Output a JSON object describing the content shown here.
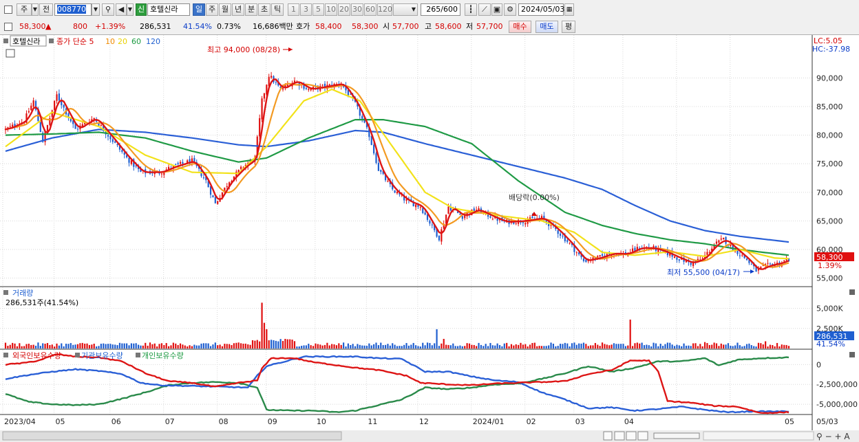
{
  "toolbar": {
    "period_left": "주",
    "prev_label": "전",
    "code": "008770",
    "credit_badge": "신",
    "stock_name": "호텔신라",
    "periods": [
      "일",
      "주",
      "월",
      "년",
      "분",
      "초",
      "틱"
    ],
    "numbers": [
      "1",
      "3",
      "5",
      "10",
      "20",
      "30",
      "60",
      "120"
    ],
    "count": "265",
    "count_total": "/600",
    "date": "2024/05/03"
  },
  "quote": {
    "price": "58,300",
    "change": "800",
    "change_pct": "+1.39%",
    "volume": "286,531",
    "volume_ratio": "41.54%",
    "turnover_pct": "0.73%",
    "amount": "16,686백만",
    "hoga_label": "호가",
    "ask": "58,400",
    "bid": "58,300",
    "open_label": "시",
    "open": "57,700",
    "high_label": "고",
    "high": "58,600",
    "low_label": "저",
    "low": "57,700",
    "buy_label": "매수",
    "sell_label": "매도",
    "flat_label": "평"
  },
  "panels": {
    "price_title": "호텔신라",
    "ma_legend": [
      "종가 단순 5",
      "10",
      "20",
      "60",
      "120"
    ],
    "lc": "LC:5.05",
    "hc": "HC:-37.98",
    "max_label": "최고 94,000 (08/28)",
    "min_label": "최저 55,500 (04/17)",
    "dividend_label": "배당락(0.00%)",
    "price_box": "58,300",
    "price_box_pct": "1.39%",
    "volume_title": "거래량",
    "volume_value": "286,531주(41.54%)",
    "volume_box": "286,531",
    "volume_box_pct": "41.54%",
    "holding_titles": [
      "외국인보유수량",
      "기관보유수량",
      "개인보유수량"
    ]
  },
  "chart_data": {
    "type": "candlestick",
    "x_labels": [
      "2023/04",
      "05",
      "06",
      "07",
      "08",
      "09",
      "10",
      "11",
      "12",
      "2024/01",
      "02",
      "03",
      "04",
      "05",
      "05/03"
    ],
    "price_axis": [
      "90,000",
      "85,000",
      "80,000",
      "75,000",
      "70,000",
      "65,000",
      "60,000",
      "55,000"
    ],
    "price_ylim": [
      53500,
      97500
    ],
    "close_anchors": [
      [
        0,
        81000
      ],
      [
        8,
        82500
      ],
      [
        12,
        86000
      ],
      [
        16,
        79000
      ],
      [
        22,
        87000
      ],
      [
        30,
        81000
      ],
      [
        38,
        83000
      ],
      [
        46,
        79000
      ],
      [
        52,
        76000
      ],
      [
        58,
        73500
      ],
      [
        66,
        73500
      ],
      [
        72,
        74500
      ],
      [
        80,
        75500
      ],
      [
        86,
        72000
      ],
      [
        90,
        68000
      ],
      [
        96,
        72000
      ],
      [
        102,
        74500
      ],
      [
        107,
        76000
      ],
      [
        110,
        86000
      ],
      [
        113,
        90500
      ],
      [
        118,
        88000
      ],
      [
        124,
        89500
      ],
      [
        130,
        88000
      ],
      [
        137,
        88500
      ],
      [
        144,
        89000
      ],
      [
        150,
        85500
      ],
      [
        156,
        80000
      ],
      [
        160,
        74000
      ],
      [
        166,
        70500
      ],
      [
        172,
        68500
      ],
      [
        178,
        67500
      ],
      [
        183,
        64000
      ],
      [
        186,
        62000
      ],
      [
        190,
        67500
      ],
      [
        196,
        65800
      ],
      [
        202,
        67000
      ],
      [
        207,
        66000
      ],
      [
        214,
        64800
      ],
      [
        222,
        65000
      ],
      [
        230,
        65500
      ],
      [
        236,
        63500
      ],
      [
        242,
        61000
      ],
      [
        248,
        58000
      ],
      [
        254,
        58500
      ],
      [
        260,
        59300
      ],
      [
        266,
        59200
      ],
      [
        272,
        60300
      ],
      [
        278,
        60200
      ],
      [
        283,
        59500
      ],
      [
        289,
        58400
      ],
      [
        294,
        57600
      ],
      [
        299,
        58400
      ],
      [
        304,
        60800
      ],
      [
        308,
        61800
      ],
      [
        312,
        60300
      ],
      [
        318,
        58200
      ],
      [
        322,
        56300
      ],
      [
        327,
        57200
      ],
      [
        332,
        57600
      ],
      [
        336,
        58300
      ]
    ],
    "ma_anchors": {
      "ma20": [
        [
          0,
          78000
        ],
        [
          20,
          84000
        ],
        [
          40,
          81500
        ],
        [
          60,
          76500
        ],
        [
          80,
          73500
        ],
        [
          100,
          73300
        ],
        [
          112,
          78000
        ],
        [
          128,
          86000
        ],
        [
          140,
          88000
        ],
        [
          152,
          86000
        ],
        [
          166,
          78000
        ],
        [
          180,
          70000
        ],
        [
          192,
          67200
        ],
        [
          210,
          66000
        ],
        [
          230,
          65000
        ],
        [
          244,
          63000
        ],
        [
          256,
          59500
        ],
        [
          270,
          59000
        ],
        [
          285,
          59600
        ],
        [
          300,
          58800
        ],
        [
          315,
          60000
        ],
        [
          330,
          58500
        ],
        [
          336,
          58400
        ]
      ],
      "ma60": [
        [
          0,
          80000
        ],
        [
          20,
          80200
        ],
        [
          40,
          80500
        ],
        [
          60,
          79500
        ],
        [
          80,
          77200
        ],
        [
          100,
          75300
        ],
        [
          112,
          76000
        ],
        [
          130,
          79500
        ],
        [
          150,
          82700
        ],
        [
          162,
          82700
        ],
        [
          180,
          81500
        ],
        [
          200,
          78500
        ],
        [
          220,
          72000
        ],
        [
          240,
          66500
        ],
        [
          256,
          64200
        ],
        [
          270,
          62800
        ],
        [
          285,
          61700
        ],
        [
          300,
          61000
        ],
        [
          315,
          60000
        ],
        [
          325,
          59500
        ],
        [
          336,
          59000
        ]
      ],
      "ma120": [
        [
          0,
          77200
        ],
        [
          20,
          79500
        ],
        [
          40,
          81000
        ],
        [
          60,
          80500
        ],
        [
          80,
          79500
        ],
        [
          100,
          78300
        ],
        [
          112,
          78000
        ],
        [
          130,
          79000
        ],
        [
          150,
          80800
        ],
        [
          162,
          80500
        ],
        [
          180,
          78500
        ],
        [
          200,
          76500
        ],
        [
          220,
          74500
        ],
        [
          240,
          72500
        ],
        [
          256,
          70500
        ],
        [
          270,
          67700
        ],
        [
          285,
          65000
        ],
        [
          300,
          63300
        ],
        [
          315,
          62300
        ],
        [
          336,
          61300
        ]
      ]
    },
    "volume_axis": [
      "5,000K",
      "2,500K"
    ],
    "volume_max": 6500000,
    "volume_spikes": [
      [
        110,
        5700000
      ],
      [
        111,
        3200000
      ],
      [
        112,
        2400000
      ],
      [
        185,
        2400000
      ],
      [
        188,
        1200000
      ],
      [
        268,
        3600000
      ],
      [
        300,
        800000
      ],
      [
        326,
        900000
      ]
    ],
    "holding_axis": [
      "0",
      "-2,500,000",
      "-5,000,000"
    ],
    "holding_ylim": [
      -6200000,
      1500000
    ],
    "holdings": {
      "foreign": [
        [
          0,
          0
        ],
        [
          8,
          200000
        ],
        [
          14,
          500000
        ],
        [
          22,
          1300000
        ],
        [
          30,
          1000000
        ],
        [
          40,
          900000
        ],
        [
          50,
          400000
        ],
        [
          60,
          -1100000
        ],
        [
          70,
          -2100000
        ],
        [
          80,
          -2300000
        ],
        [
          90,
          -2800000
        ],
        [
          100,
          -2300000
        ],
        [
          108,
          -2000000
        ],
        [
          110,
          -500000
        ],
        [
          114,
          800000
        ],
        [
          124,
          800000
        ],
        [
          132,
          300000
        ],
        [
          140,
          0
        ],
        [
          150,
          -400000
        ],
        [
          160,
          -700000
        ],
        [
          172,
          -1400000
        ],
        [
          178,
          -2300000
        ],
        [
          190,
          -2500000
        ],
        [
          200,
          -2600000
        ],
        [
          210,
          -2400000
        ],
        [
          220,
          -2300000
        ],
        [
          230,
          -2200000
        ],
        [
          240,
          -2100000
        ],
        [
          250,
          -1200000
        ],
        [
          260,
          -700000
        ],
        [
          268,
          500000
        ],
        [
          276,
          500000
        ],
        [
          280,
          -900000
        ],
        [
          284,
          -4600000
        ],
        [
          294,
          -4800000
        ],
        [
          304,
          -5200000
        ],
        [
          314,
          -5300000
        ],
        [
          324,
          -6100000
        ],
        [
          336,
          -6000000
        ]
      ],
      "institution": [
        [
          0,
          -1800000
        ],
        [
          10,
          -1300000
        ],
        [
          20,
          -900000
        ],
        [
          30,
          -600000
        ],
        [
          40,
          -800000
        ],
        [
          50,
          -1200000
        ],
        [
          58,
          -2300000
        ],
        [
          66,
          -2600000
        ],
        [
          80,
          -2700000
        ],
        [
          94,
          -2800000
        ],
        [
          104,
          -2900000
        ],
        [
          108,
          -1400000
        ],
        [
          112,
          -200000
        ],
        [
          120,
          400000
        ],
        [
          128,
          1000000
        ],
        [
          140,
          1000000
        ],
        [
          150,
          1000000
        ],
        [
          160,
          800000
        ],
        [
          170,
          700000
        ],
        [
          180,
          -900000
        ],
        [
          190,
          -900000
        ],
        [
          200,
          -1500000
        ],
        [
          210,
          -2000000
        ],
        [
          220,
          -2200000
        ],
        [
          230,
          -3500000
        ],
        [
          240,
          -4400000
        ],
        [
          250,
          -5500000
        ],
        [
          260,
          -5400000
        ],
        [
          270,
          -5800000
        ],
        [
          280,
          -5600000
        ],
        [
          290,
          -5300000
        ],
        [
          300,
          -5700000
        ],
        [
          310,
          -6000000
        ],
        [
          320,
          -5900000
        ],
        [
          336,
          -5900000
        ]
      ],
      "individual": [
        [
          0,
          -3700000
        ],
        [
          10,
          -4700000
        ],
        [
          20,
          -5000000
        ],
        [
          30,
          -5100000
        ],
        [
          40,
          -5000000
        ],
        [
          50,
          -4300000
        ],
        [
          60,
          -3500000
        ],
        [
          70,
          -2600000
        ],
        [
          80,
          -2300000
        ],
        [
          90,
          -2200000
        ],
        [
          100,
          -2300000
        ],
        [
          108,
          -2900000
        ],
        [
          112,
          -5700000
        ],
        [
          122,
          -5800000
        ],
        [
          132,
          -5800000
        ],
        [
          142,
          -6000000
        ],
        [
          150,
          -5800000
        ],
        [
          160,
          -5100000
        ],
        [
          170,
          -4400000
        ],
        [
          180,
          -2900000
        ],
        [
          190,
          -3100000
        ],
        [
          200,
          -2900000
        ],
        [
          210,
          -2500000
        ],
        [
          220,
          -2400000
        ],
        [
          230,
          -1800000
        ],
        [
          240,
          -1100000
        ],
        [
          250,
          -200000
        ],
        [
          260,
          -900000
        ],
        [
          270,
          -400000
        ],
        [
          280,
          400000
        ],
        [
          290,
          400000
        ],
        [
          300,
          800000
        ],
        [
          306,
          -100000
        ],
        [
          314,
          600000
        ],
        [
          324,
          800000
        ],
        [
          336,
          900000
        ]
      ]
    }
  }
}
